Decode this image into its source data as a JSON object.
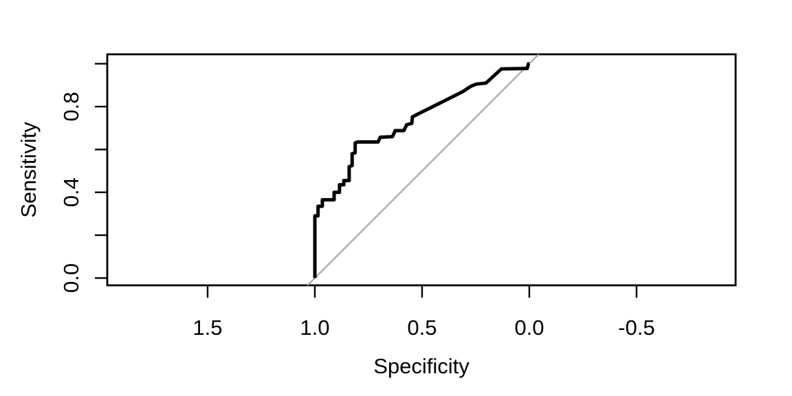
{
  "figure": {
    "background": "#ffffff",
    "description": "ROC curve plot (R base graphics style) with reversed specificity x-axis and gray chance diagonal"
  },
  "chart_data": {
    "type": "line",
    "subtype": "roc-step-curve",
    "title": "",
    "xlabel": "Specificity",
    "ylabel": "Sensitivity",
    "x_axis_reversed": true,
    "xlim": [
      1.968,
      -0.962
    ],
    "ylim": [
      -0.034,
      1.044
    ],
    "x_ticks": [
      1.5,
      1.0,
      0.5,
      0.0,
      -0.5
    ],
    "x_tick_labels": [
      "1.5",
      "1.0",
      "0.5",
      "0.0",
      "-0.5"
    ],
    "y_ticks": [
      0.0,
      0.2,
      0.4,
      0.6,
      0.8,
      1.0
    ],
    "y_tick_labels": [
      "0.0",
      "",
      "0.4",
      "",
      "0.8",
      ""
    ],
    "grid": false,
    "legend": null,
    "axis_color": "#000000",
    "box_stroke_width": 2.8,
    "tick_stroke_width": 2.4,
    "tick_length": 18,
    "series": [
      {
        "name": "chance-diagonal",
        "color": "#a6a6a6",
        "stroke_width": 2.2,
        "points": [
          [
            1.034,
            -0.034
          ],
          [
            -0.044,
            1.044
          ]
        ]
      },
      {
        "name": "roc-curve",
        "color": "#000000",
        "stroke_width": 5,
        "points": [
          [
            1.0,
            0.0
          ],
          [
            1.0,
            0.29
          ],
          [
            0.985,
            0.29
          ],
          [
            0.985,
            0.335
          ],
          [
            0.965,
            0.335
          ],
          [
            0.965,
            0.365
          ],
          [
            0.91,
            0.365
          ],
          [
            0.91,
            0.4
          ],
          [
            0.885,
            0.4
          ],
          [
            0.885,
            0.435
          ],
          [
            0.865,
            0.435
          ],
          [
            0.865,
            0.455
          ],
          [
            0.84,
            0.455
          ],
          [
            0.84,
            0.52
          ],
          [
            0.826,
            0.525
          ],
          [
            0.826,
            0.58
          ],
          [
            0.812,
            0.585
          ],
          [
            0.812,
            0.63
          ],
          [
            0.8,
            0.635
          ],
          [
            0.705,
            0.635
          ],
          [
            0.695,
            0.657
          ],
          [
            0.638,
            0.66
          ],
          [
            0.625,
            0.688
          ],
          [
            0.585,
            0.688
          ],
          [
            0.572,
            0.715
          ],
          [
            0.548,
            0.722
          ],
          [
            0.545,
            0.752
          ],
          [
            0.5,
            0.775
          ],
          [
            0.45,
            0.8
          ],
          [
            0.4,
            0.825
          ],
          [
            0.35,
            0.85
          ],
          [
            0.31,
            0.87
          ],
          [
            0.272,
            0.895
          ],
          [
            0.247,
            0.905
          ],
          [
            0.202,
            0.91
          ],
          [
            0.13,
            0.976
          ],
          [
            0.01,
            0.978
          ],
          [
            0.004,
            1.0
          ],
          [
            0.0,
            1.0
          ]
        ]
      }
    ]
  }
}
